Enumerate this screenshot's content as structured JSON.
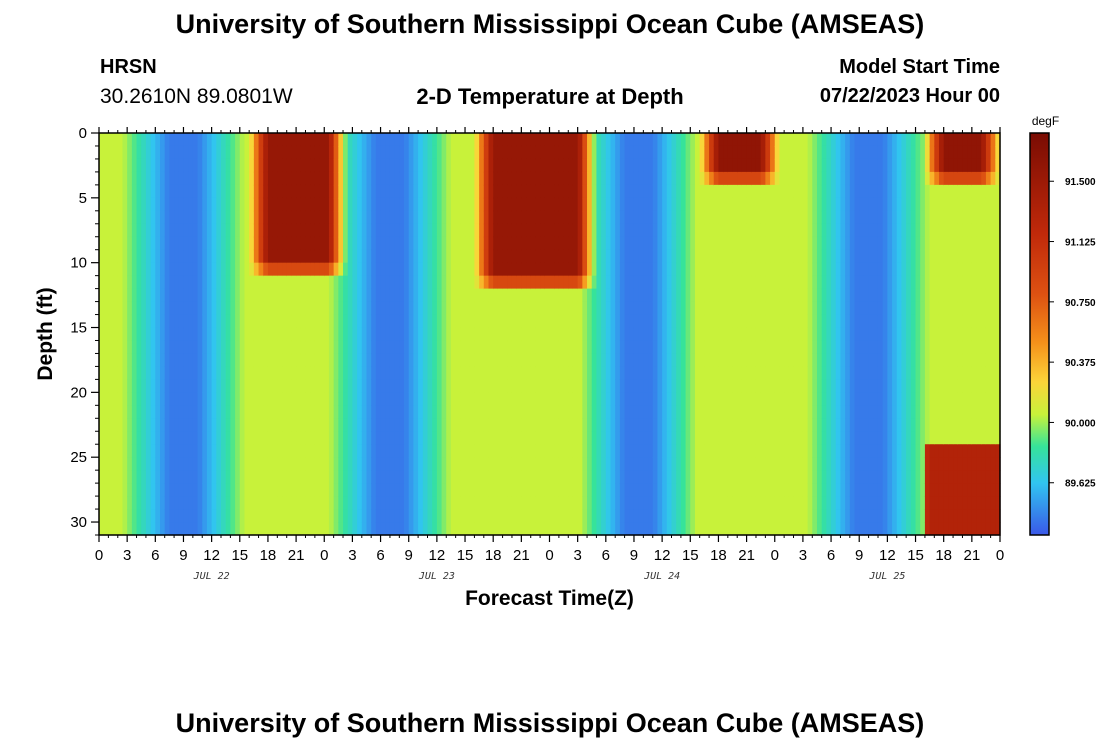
{
  "title": "University of Southern Mississippi Ocean Cube (AMSEAS)",
  "station": {
    "name": "HRSN",
    "coords": "30.2610N  89.0801W"
  },
  "plot_title": "2-D Temperature at Depth",
  "model_start": {
    "label": "Model Start Time",
    "value": "07/22/2023 Hour 00"
  },
  "footer_title": "University of Southern Mississippi Ocean Cube (AMSEAS)",
  "colors": {
    "background": "#ffffff",
    "axis": "#000000"
  },
  "chart_data": {
    "type": "heatmap",
    "title": "2-D Temperature at Depth",
    "xlabel": "Forecast Time(Z)",
    "ylabel": "Depth (ft)",
    "x_range_hours": [
      0,
      96
    ],
    "y_range_ft": [
      0,
      31
    ],
    "x_ticks": [
      {
        "h": 0,
        "label": "0"
      },
      {
        "h": 3,
        "label": "3"
      },
      {
        "h": 6,
        "label": "6"
      },
      {
        "h": 9,
        "label": "9"
      },
      {
        "h": 12,
        "label": "12"
      },
      {
        "h": 15,
        "label": "15"
      },
      {
        "h": 18,
        "label": "18"
      },
      {
        "h": 21,
        "label": "21"
      },
      {
        "h": 24,
        "label": "0"
      },
      {
        "h": 27,
        "label": "3"
      },
      {
        "h": 30,
        "label": "6"
      },
      {
        "h": 33,
        "label": "9"
      },
      {
        "h": 36,
        "label": "12"
      },
      {
        "h": 39,
        "label": "15"
      },
      {
        "h": 42,
        "label": "18"
      },
      {
        "h": 45,
        "label": "21"
      },
      {
        "h": 48,
        "label": "0"
      },
      {
        "h": 51,
        "label": "3"
      },
      {
        "h": 54,
        "label": "6"
      },
      {
        "h": 57,
        "label": "9"
      },
      {
        "h": 60,
        "label": "12"
      },
      {
        "h": 63,
        "label": "15"
      },
      {
        "h": 66,
        "label": "18"
      },
      {
        "h": 69,
        "label": "21"
      },
      {
        "h": 72,
        "label": "0"
      },
      {
        "h": 75,
        "label": "3"
      },
      {
        "h": 78,
        "label": "6"
      },
      {
        "h": 81,
        "label": "9"
      },
      {
        "h": 84,
        "label": "12"
      },
      {
        "h": 87,
        "label": "15"
      },
      {
        "h": 90,
        "label": "18"
      },
      {
        "h": 93,
        "label": "21"
      },
      {
        "h": 96,
        "label": "0"
      }
    ],
    "date_labels": [
      {
        "h": 12,
        "label": "JUL 22"
      },
      {
        "h": 36,
        "label": "JUL 23"
      },
      {
        "h": 60,
        "label": "JUL 24"
      },
      {
        "h": 84,
        "label": "JUL 25"
      }
    ],
    "y_ticks": [
      {
        "v": 0,
        "label": "0"
      },
      {
        "v": 5,
        "label": "5"
      },
      {
        "v": 10,
        "label": "10"
      },
      {
        "v": 15,
        "label": "15"
      },
      {
        "v": 20,
        "label": "20"
      },
      {
        "v": 25,
        "label": "25"
      },
      {
        "v": 30,
        "label": "30"
      }
    ],
    "colorbar": {
      "unit": "degF",
      "min": 89.3,
      "max": 91.8,
      "ticks": [
        {
          "v": 89.625,
          "label": "89.625"
        },
        {
          "v": 90.0,
          "label": "90.000"
        },
        {
          "v": 90.375,
          "label": "90.375"
        },
        {
          "v": 90.75,
          "label": "90.750"
        },
        {
          "v": 91.125,
          "label": "91.125"
        },
        {
          "v": 91.5,
          "label": "91.500"
        }
      ]
    },
    "grid_step_hours": 0.5,
    "grid_step_ft": 1,
    "field_model": {
      "description": "Approximate temperature field (degF) over hour (0-96) and depth (ft 0-31)",
      "cool_bands": [
        {
          "center_h": 9,
          "half_width_h": 4.5,
          "value": 89.4
        },
        {
          "center_h": 31,
          "half_width_h": 4.5,
          "value": 89.4
        },
        {
          "center_h": 57.5,
          "half_width_h": 4.2,
          "value": 89.4
        },
        {
          "center_h": 82,
          "half_width_h": 4.5,
          "value": 89.4
        }
      ],
      "warm_lobes": [
        {
          "h_start": 16,
          "h_end": 26.5,
          "depth_end_ft": 11,
          "value": 91.55
        },
        {
          "h_start": 40,
          "h_end": 53,
          "depth_end_ft": 12,
          "value": 91.55
        },
        {
          "h_start": 64,
          "h_end": 72.5,
          "depth_end_ft": 4,
          "value": 91.6
        },
        {
          "h_start": 88,
          "h_end": 96,
          "depth_end_ft": 4,
          "value": 91.6
        }
      ],
      "deep_warm_patch": {
        "h_start": 88,
        "h_end": 96,
        "depth_start_ft": 24,
        "value": 91.3
      },
      "default_value": 90.05
    }
  }
}
